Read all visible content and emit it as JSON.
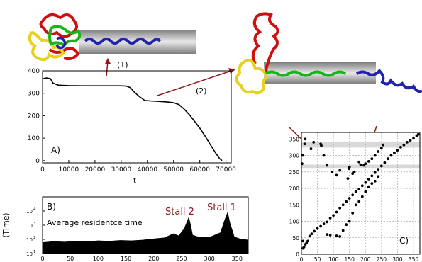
{
  "colors": {
    "protein_red": "#cc1111",
    "protein_yellow": "#e6d21e",
    "protein_green": "#17b51a",
    "protein_blue": "#2222aa",
    "pore_gray": "#9a9a9a",
    "arrow": "#8b1a1a",
    "stall_label": "#8b1a1a",
    "highlight_band": "#d9d9d9"
  },
  "annotations": {
    "arrow_1": "(1)",
    "arrow_2": "(2)"
  },
  "chart_data": [
    {
      "type": "line",
      "panel_label": "A)",
      "xlabel": "t",
      "ylabel": "",
      "xlim": [
        0,
        72000
      ],
      "ylim": [
        -10,
        400
      ],
      "xticks": [
        "0",
        "10000",
        "20000",
        "30000",
        "40000",
        "50000",
        "60000",
        "70000"
      ],
      "yticks": [
        "0",
        "100",
        "200",
        "300",
        "400"
      ],
      "x": [
        0,
        1500,
        3000,
        4000,
        6000,
        10000,
        15000,
        20000,
        25000,
        30000,
        32000,
        33500,
        35000,
        37000,
        39000,
        41000,
        44000,
        47000,
        50000,
        52000,
        54000,
        56000,
        58000,
        60000,
        62000,
        64000,
        66000,
        67500,
        68500
      ],
      "y": [
        365,
        368,
        365,
        345,
        336,
        334,
        333,
        333,
        333,
        333,
        332,
        325,
        305,
        285,
        268,
        266,
        264,
        262,
        258,
        250,
        230,
        205,
        175,
        145,
        110,
        72,
        35,
        10,
        0
      ]
    },
    {
      "type": "area",
      "panel_label": "B)",
      "title": "Average residentce time",
      "ylabel": "⟨Time⟩",
      "yscale": "log",
      "xlim": [
        0,
        370
      ],
      "ylim": [
        10,
        100000
      ],
      "xticks": [
        "0",
        "50",
        "100",
        "150",
        "200",
        "250",
        "300",
        "350"
      ],
      "yticks": [
        "10^1",
        "10^2",
        "10^3",
        "10^4"
      ],
      "x": [
        0,
        20,
        40,
        60,
        80,
        100,
        120,
        140,
        160,
        180,
        200,
        220,
        235,
        245,
        255,
        260,
        263,
        266,
        270,
        280,
        300,
        320,
        328,
        333,
        337,
        345,
        355,
        370
      ],
      "values": [
        60,
        70,
        65,
        75,
        70,
        80,
        75,
        85,
        80,
        90,
        110,
        130,
        250,
        180,
        600,
        1800,
        3500,
        1200,
        200,
        150,
        140,
        300,
        2500,
        8000,
        1500,
        150,
        110,
        90
      ],
      "annotations": [
        "Stall 2",
        "Stall 1"
      ]
    },
    {
      "type": "scatter",
      "panel_label": "C)",
      "xlim": [
        0,
        370
      ],
      "ylim": [
        0,
        370
      ],
      "xticks": [
        "0",
        "50",
        "100",
        "150",
        "200",
        "250",
        "300",
        "350"
      ],
      "yticks": [
        "0",
        "50",
        "100",
        "150",
        "200",
        "250",
        "300",
        "350"
      ],
      "grid": true,
      "highlight_bands_y": [
        [
          324,
          342
        ],
        [
          262,
          272
        ]
      ],
      "x": [
        5,
        8,
        12,
        16,
        20,
        26,
        32,
        40,
        50,
        60,
        70,
        80,
        90,
        100,
        110,
        120,
        130,
        140,
        150,
        160,
        170,
        180,
        190,
        200,
        210,
        220,
        230,
        240,
        250,
        260,
        270,
        280,
        290,
        300,
        310,
        320,
        330,
        340,
        350,
        360,
        365,
        2,
        4,
        10,
        12,
        5,
        30,
        38,
        60,
        62,
        70,
        80,
        95,
        110,
        120,
        145,
        148,
        150,
        160,
        165,
        180,
        185,
        195,
        200,
        210,
        220,
        230,
        240,
        250,
        255,
        80,
        90,
        110,
        120,
        130,
        140,
        150,
        160,
        170,
        180,
        190,
        200,
        210,
        220,
        230,
        240
      ],
      "y": [
        18,
        22,
        30,
        34,
        40,
        55,
        62,
        70,
        78,
        85,
        92,
        98,
        110,
        118,
        128,
        140,
        150,
        160,
        170,
        180,
        190,
        198,
        208,
        218,
        228,
        238,
        248,
        258,
        268,
        278,
        290,
        300,
        308,
        316,
        325,
        332,
        340,
        346,
        352,
        360,
        364,
        275,
        300,
        335,
        350,
        40,
        320,
        340,
        335,
        330,
        300,
        270,
        250,
        240,
        255,
        230,
        260,
        265,
        245,
        250,
        280,
        272,
        270,
        275,
        282,
        290,
        300,
        312,
        322,
        332,
        60,
        58,
        56,
        54,
        72,
        90,
        100,
        125,
        150,
        160,
        175,
        190,
        205,
        215,
        222,
        236
      ]
    }
  ]
}
